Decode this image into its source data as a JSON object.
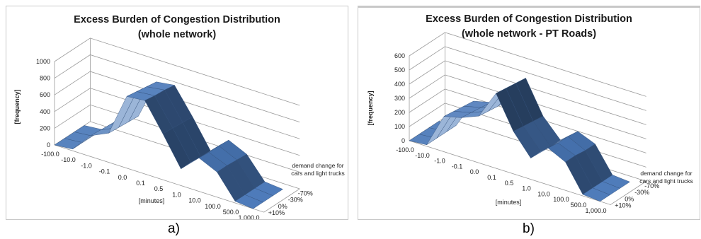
{
  "captions": {
    "a": "a)",
    "b": "b)"
  },
  "chart_data": [
    {
      "type": "surface",
      "title": "Excess Burden of Congestion Distribution",
      "subtitle": "(whole network)",
      "ylabel": "[frequency]",
      "xlabel": "[minutes]",
      "zlabel": "demand change for cars and light trucks",
      "ylim": [
        0,
        1000
      ],
      "yticks": [
        0,
        200,
        400,
        600,
        800,
        1000
      ],
      "x_categories": [
        "-100.0",
        "-10.0",
        "-1.0",
        "-0.1",
        "0.0",
        "0.1",
        "0.5",
        "1.0",
        "10.0",
        "100.0",
        "500.0",
        "1,000.0"
      ],
      "z_categories": [
        "+10%",
        "0%",
        "-30%",
        "-70%"
      ],
      "series": [
        {
          "name": "+10%",
          "values": [
            0,
            20,
            250,
            350,
            860,
            880,
            550,
            200,
            400,
            300,
            20,
            0
          ]
        },
        {
          "name": "0%",
          "values": [
            0,
            20,
            240,
            340,
            840,
            860,
            540,
            200,
            390,
            300,
            20,
            0
          ]
        },
        {
          "name": "-30%",
          "values": [
            0,
            20,
            230,
            330,
            820,
            850,
            530,
            190,
            390,
            290,
            20,
            0
          ]
        },
        {
          "name": "-70%",
          "values": [
            0,
            20,
            220,
            320,
            800,
            830,
            520,
            180,
            380,
            280,
            20,
            0
          ]
        }
      ],
      "color": "#4a78b8"
    },
    {
      "type": "surface",
      "title": "Excess Burden of Congestion Distribution",
      "subtitle": "(whole network - PT Roads)",
      "ylabel": "[frequency]",
      "xlabel": "[minutes]",
      "zlabel": "demand change for cars and light trucks",
      "ylim": [
        0,
        600
      ],
      "yticks": [
        0,
        100,
        200,
        300,
        400,
        500,
        600
      ],
      "x_categories": [
        "-100.0",
        "-10.0",
        "-1.0",
        "-0.1",
        "0.0",
        "0.1",
        "0.5",
        "1.0",
        "10.0",
        "100.0",
        "500.0",
        "1,000.0"
      ],
      "z_categories": [
        "+10%",
        "0%",
        "-30%",
        "-70%"
      ],
      "series": [
        {
          "name": "+10%",
          "values": [
            0,
            10,
            250,
            280,
            330,
            530,
            300,
            150,
            260,
            200,
            10,
            0
          ]
        },
        {
          "name": "0%",
          "values": [
            0,
            10,
            240,
            270,
            320,
            520,
            290,
            150,
            250,
            200,
            10,
            0
          ]
        },
        {
          "name": "-30%",
          "values": [
            0,
            10,
            230,
            260,
            310,
            510,
            280,
            140,
            250,
            190,
            10,
            0
          ]
        },
        {
          "name": "-70%",
          "values": [
            0,
            10,
            220,
            250,
            300,
            500,
            270,
            140,
            240,
            190,
            10,
            0
          ]
        }
      ],
      "color": "#4a78b8"
    }
  ]
}
